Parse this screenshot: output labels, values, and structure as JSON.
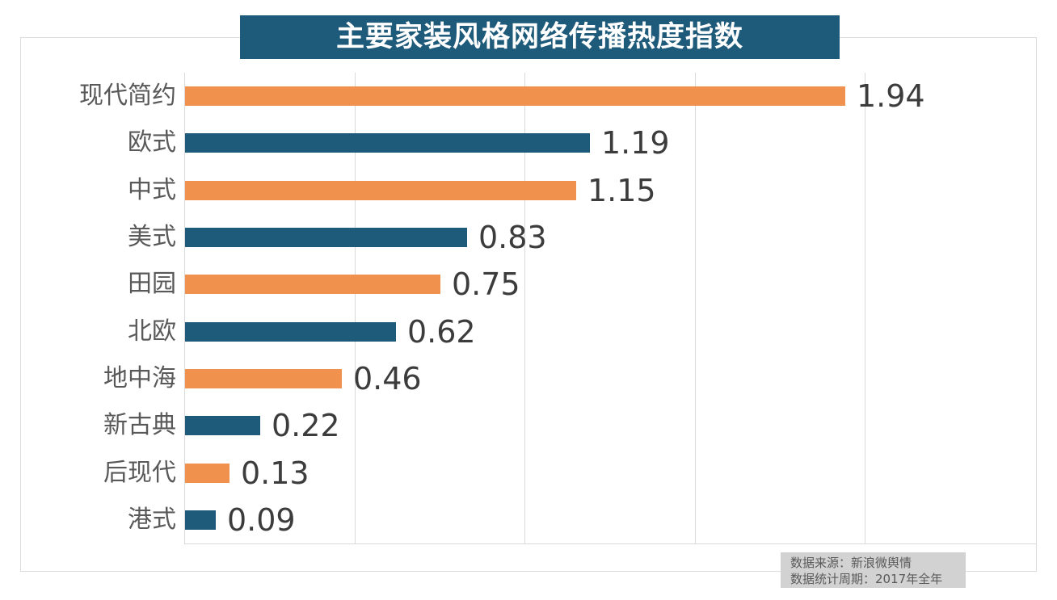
{
  "title": "主要家装风格网络传播热度指数",
  "footer": {
    "source": "数据来源：新浪微舆情",
    "period": "数据统计周期：2017年全年"
  },
  "colors": {
    "odd_bar": "#f0924d",
    "even_bar": "#1e5a7a",
    "title_bg": "#1e5a7a",
    "title_text": "#ffffff",
    "gridline": "#d9d9d9",
    "category_text": "#595959",
    "value_text": "#3c3c3c",
    "source_bg": "#d2d2d2",
    "source_text": "#595959"
  },
  "chart_data": {
    "type": "bar",
    "orientation": "horizontal",
    "title": "主要家装风格网络传播热度指数",
    "categories": [
      "现代简约",
      "欧式",
      "中式",
      "美式",
      "田园",
      "北欧",
      "地中海",
      "新古典",
      "后现代",
      "港式"
    ],
    "values": [
      1.94,
      1.19,
      1.15,
      0.83,
      0.75,
      0.62,
      0.46,
      0.22,
      0.13,
      0.09
    ],
    "value_labels": [
      "1.94",
      "1.19",
      "1.15",
      "0.83",
      "0.75",
      "0.62",
      "0.46",
      "0.22",
      "0.13",
      "0.09"
    ],
    "xlim": [
      0,
      2.5
    ],
    "grid": true,
    "grid_ticks": [
      0,
      0.5,
      1.0,
      1.5,
      2.0
    ],
    "legend": "none",
    "bar_color_pattern": [
      "#f0924d",
      "#1e5a7a"
    ],
    "source_note": [
      "数据来源：新浪微舆情",
      "数据统计周期：2017年全年"
    ]
  }
}
